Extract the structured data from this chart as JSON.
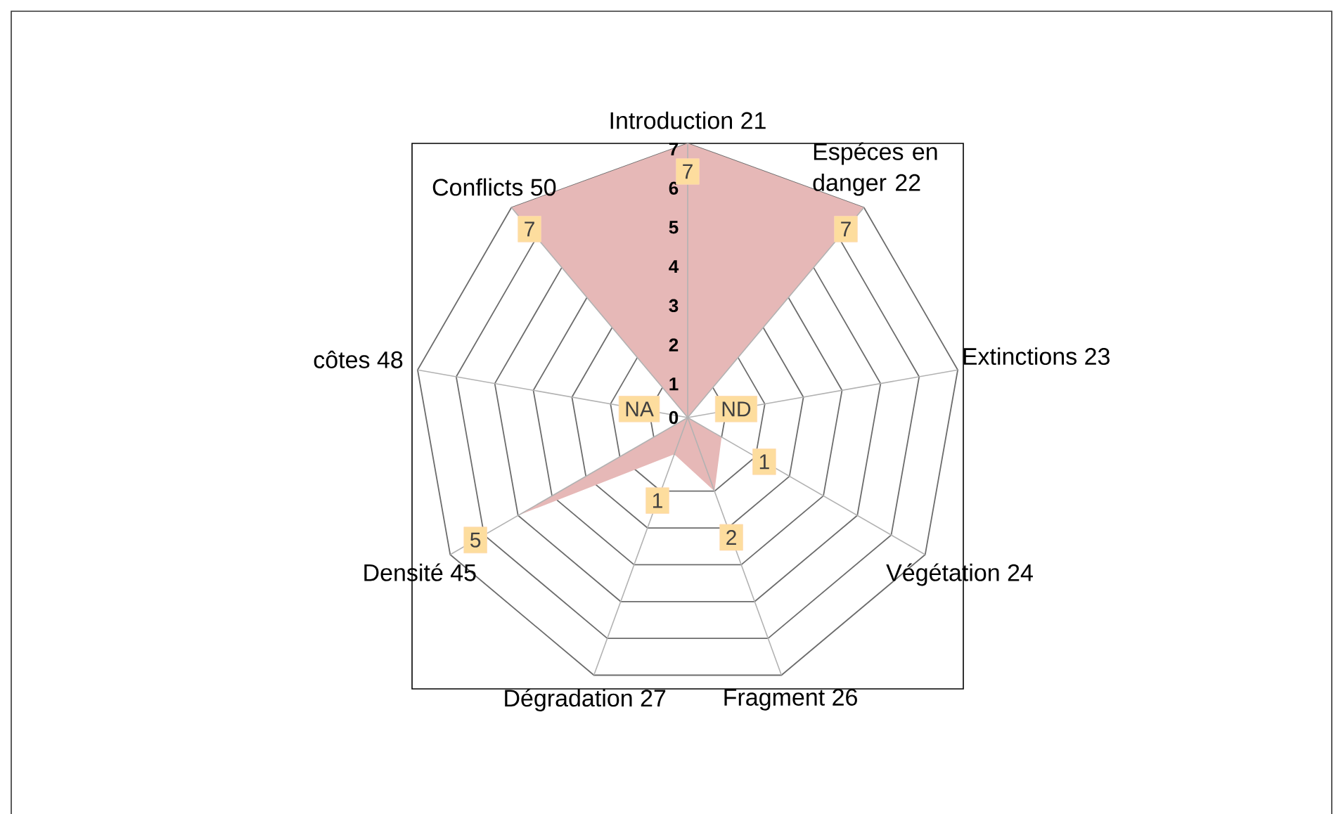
{
  "chart_data": {
    "type": "radar",
    "categories": [
      "Introduction  21",
      "Espéces en danger 22",
      "Extinctions 23",
      "Végétation 24",
      "Fragment 26",
      "Dégradation 27",
      "Densité 45",
      "côtes 48",
      "Conflicts 50"
    ],
    "series": [
      {
        "type": "area",
        "color": "#e6b8b7",
        "values": [
          7,
          7,
          0,
          1,
          2,
          1,
          5,
          0,
          7
        ],
        "value_labels": [
          "7",
          "7",
          "ND",
          "1",
          "2",
          "1",
          "5",
          "NA",
          "7"
        ]
      }
    ],
    "ylim": [
      0,
      7
    ],
    "yticks": [
      0,
      1,
      2,
      3,
      4,
      5,
      6,
      7
    ],
    "grid": true
  }
}
